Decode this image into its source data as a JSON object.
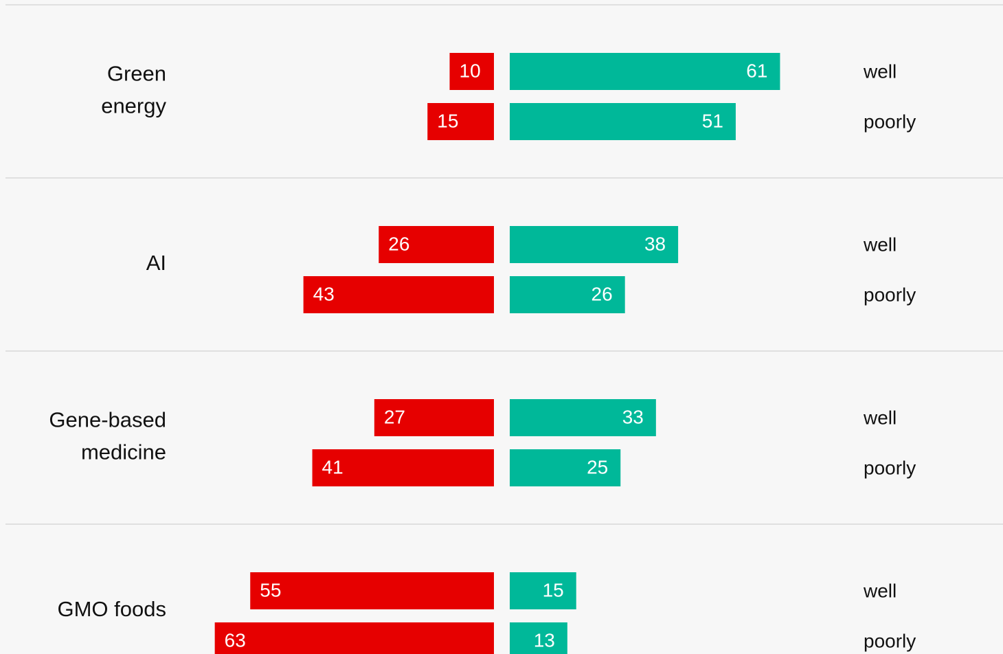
{
  "chart_data": {
    "type": "diverging-bar",
    "categories": [
      [
        "Green",
        "energy"
      ],
      [
        "AI"
      ],
      [
        "Gene-based",
        "medicine"
      ],
      [
        "GMO foods"
      ]
    ],
    "row_labels": [
      [
        "well",
        "poorly"
      ],
      [
        "well",
        "poorly"
      ],
      [
        "well",
        "poorly"
      ],
      [
        "well",
        "poorly"
      ]
    ],
    "series": [
      {
        "color": "#e60000",
        "side": "left",
        "values": [
          [
            10,
            15
          ],
          [
            26,
            43
          ],
          [
            27,
            41
          ],
          [
            55,
            63
          ]
        ]
      },
      {
        "color": "#00b899",
        "side": "right",
        "values": [
          [
            61,
            51
          ],
          [
            38,
            26
          ],
          [
            33,
            25
          ],
          [
            15,
            13
          ]
        ]
      }
    ]
  }
}
